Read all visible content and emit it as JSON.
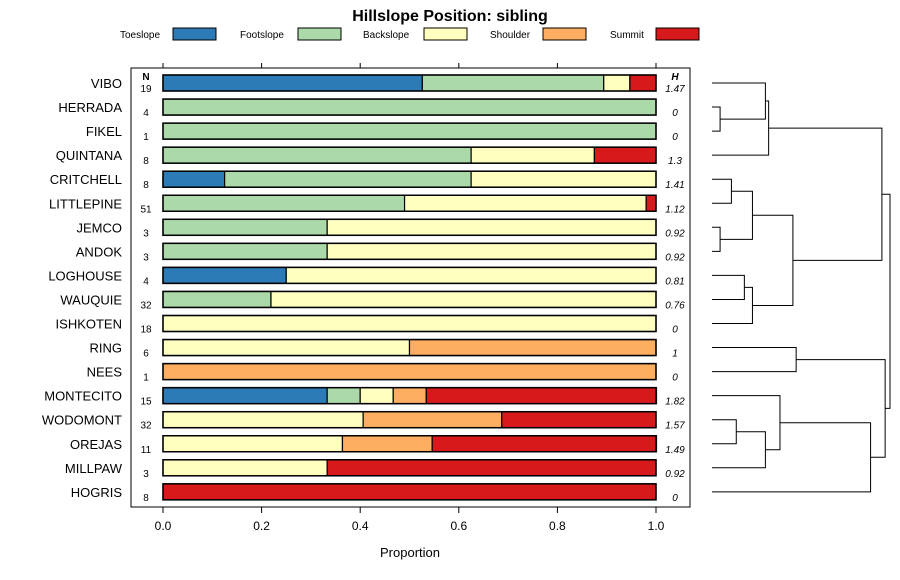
{
  "chart_data": {
    "type": "bar",
    "orientation": "horizontal-stacked",
    "title": "Hillslope Position: sibling",
    "xlabel": "Proportion",
    "xlim": [
      0,
      1
    ],
    "xticks": [
      "0.0",
      "0.2",
      "0.4",
      "0.6",
      "0.8",
      "1.0"
    ],
    "n_header": "N",
    "h_header": "H",
    "categories": [
      "Toeslope",
      "Footslope",
      "Backslope",
      "Shoulder",
      "Summit"
    ],
    "colors": [
      "#2c7bb6",
      "#abd9a9",
      "#ffffbf",
      "#fdae61",
      "#d7191c"
    ],
    "rows": [
      {
        "name": "VIBO",
        "n": "19",
        "h": "1.47",
        "values": [
          0.526,
          0.368,
          0.053,
          0,
          0.053
        ]
      },
      {
        "name": "HERRADA",
        "n": "4",
        "h": "0",
        "values": [
          0,
          1,
          0,
          0,
          0
        ]
      },
      {
        "name": "FIKEL",
        "n": "1",
        "h": "0",
        "values": [
          0,
          1,
          0,
          0,
          0
        ]
      },
      {
        "name": "QUINTANA",
        "n": "8",
        "h": "1.3",
        "values": [
          0,
          0.625,
          0.25,
          0,
          0.125
        ]
      },
      {
        "name": "CRITCHELL",
        "n": "8",
        "h": "1.41",
        "values": [
          0.125,
          0.5,
          0.375,
          0,
          0
        ]
      },
      {
        "name": "LITTLEPINE",
        "n": "51",
        "h": "1.12",
        "values": [
          0,
          0.49,
          0.49,
          0,
          0.02
        ]
      },
      {
        "name": "JEMCO",
        "n": "3",
        "h": "0.92",
        "values": [
          0,
          0.333,
          0.667,
          0,
          0
        ]
      },
      {
        "name": "ANDOK",
        "n": "3",
        "h": "0.92",
        "values": [
          0,
          0.333,
          0.667,
          0,
          0
        ]
      },
      {
        "name": "LOGHOUSE",
        "n": "4",
        "h": "0.81",
        "values": [
          0.25,
          0,
          0.75,
          0,
          0
        ]
      },
      {
        "name": "WAUQUIE",
        "n": "32",
        "h": "0.76",
        "values": [
          0,
          0.219,
          0.781,
          0,
          0
        ]
      },
      {
        "name": "ISHKOTEN",
        "n": "18",
        "h": "0",
        "values": [
          0,
          0,
          1,
          0,
          0
        ]
      },
      {
        "name": "RING",
        "n": "6",
        "h": "1",
        "values": [
          0,
          0,
          0.5,
          0.5,
          0
        ]
      },
      {
        "name": "NEES",
        "n": "1",
        "h": "0",
        "values": [
          0,
          0,
          0,
          1,
          0
        ]
      },
      {
        "name": "MONTECITO",
        "n": "15",
        "h": "1.82",
        "values": [
          0.333,
          0.067,
          0.067,
          0.067,
          0.467
        ]
      },
      {
        "name": "WODOMONT",
        "n": "32",
        "h": "1.57",
        "values": [
          0,
          0,
          0.406,
          0.281,
          0.313
        ]
      },
      {
        "name": "OREJAS",
        "n": "11",
        "h": "1.49",
        "values": [
          0,
          0,
          0.364,
          0.182,
          0.455
        ]
      },
      {
        "name": "MILLPAW",
        "n": "3",
        "h": "0.92",
        "values": [
          0,
          0,
          0.333,
          0,
          0.667
        ]
      },
      {
        "name": "HOGRIS",
        "n": "8",
        "h": "0",
        "values": [
          0,
          0,
          0,
          0,
          1
        ]
      }
    ],
    "dendrogram": {
      "type": "hierarchical-clustering",
      "leaf_order": [
        "VIBO",
        "HERRADA",
        "FIKEL",
        "QUINTANA",
        "CRITCHELL",
        "LITTLEPINE",
        "JEMCO",
        "ANDOK",
        "LOGHOUSE",
        "WAUQUIE",
        "ISHKOTEN",
        "RING",
        "NEES",
        "MONTECITO",
        "WODOMONT",
        "OREJAS",
        "MILLPAW",
        "HOGRIS"
      ],
      "merges": [
        [
          1,
          2,
          0.05
        ],
        [
          0,
          -1,
          0.33
        ],
        [
          -2,
          3,
          0.35
        ],
        [
          4,
          5,
          0.12
        ],
        [
          6,
          7,
          0.05
        ],
        [
          -4,
          -5,
          0.25
        ],
        [
          8,
          9,
          0.2
        ],
        [
          -7,
          10,
          0.25
        ],
        [
          -6,
          -8,
          0.5
        ],
        [
          -3,
          -9,
          1.05
        ],
        [
          11,
          12,
          0.52
        ],
        [
          14,
          15,
          0.15
        ],
        [
          -12,
          16,
          0.33
        ],
        [
          13,
          -13,
          0.42
        ],
        [
          -14,
          17,
          0.98
        ],
        [
          -11,
          -15,
          1.07
        ],
        [
          -10,
          -16,
          1.1
        ]
      ]
    }
  }
}
